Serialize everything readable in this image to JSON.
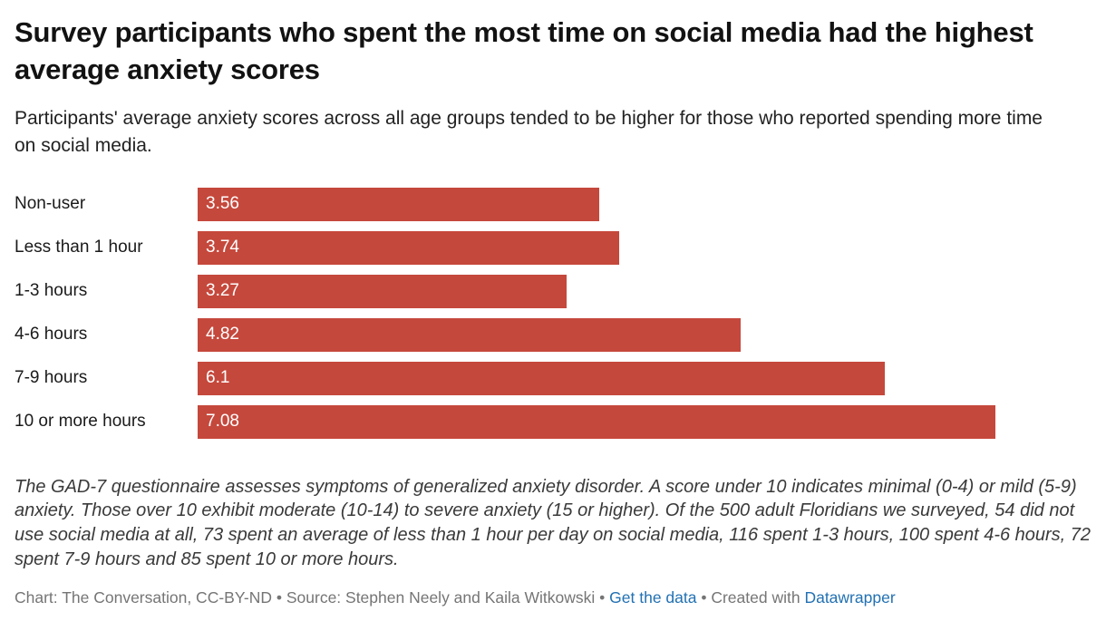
{
  "footnote": "The GAD-7 questionnaire assesses symptoms of generalized anxiety disorder. A score under 10 indicates minimal (0-4) or mild (5-9) anxiety. Those over 10 exhibit moderate (10-14) to severe anxiety (15 or higher). Of the 500 adult Floridians we surveyed, 54 did not use social media at all, 73 spent an average of less than 1 hour per day on social media, 116 spent 1-3 hours, 100 spent 4-6 hours, 72 spent 7-9 hours and 85 spent 10 or more hours.",
  "footer": {
    "credit": "Chart: The Conversation, CC-BY-ND • Source: Stephen Neely and Kaila Witkowski • ",
    "get_data_label": "Get the data",
    "created_with": " • Created with ",
    "datawrapper_label": "Datawrapper"
  },
  "chart_data": {
    "type": "bar",
    "orientation": "horizontal",
    "title": "Survey participants who spent the most time on social media had the highest average anxiety scores",
    "subtitle": "Participants' average anxiety scores across all age groups tended to be higher for those who reported spending more time on social media.",
    "categories": [
      "Non-user",
      "Less than 1 hour",
      "1-3 hours",
      "4-6 hours",
      "7-9 hours",
      "10 or more hours"
    ],
    "values": [
      3.56,
      3.74,
      3.27,
      4.82,
      6.1,
      7.08
    ],
    "value_labels": [
      "3.56",
      "3.74",
      "3.27",
      "4.82",
      "6.1",
      "7.08"
    ],
    "xlim": [
      0,
      7.93
    ],
    "grid": false,
    "legend": "none",
    "bar_color": "#c5483c",
    "value_label_color": "#ffffff"
  }
}
